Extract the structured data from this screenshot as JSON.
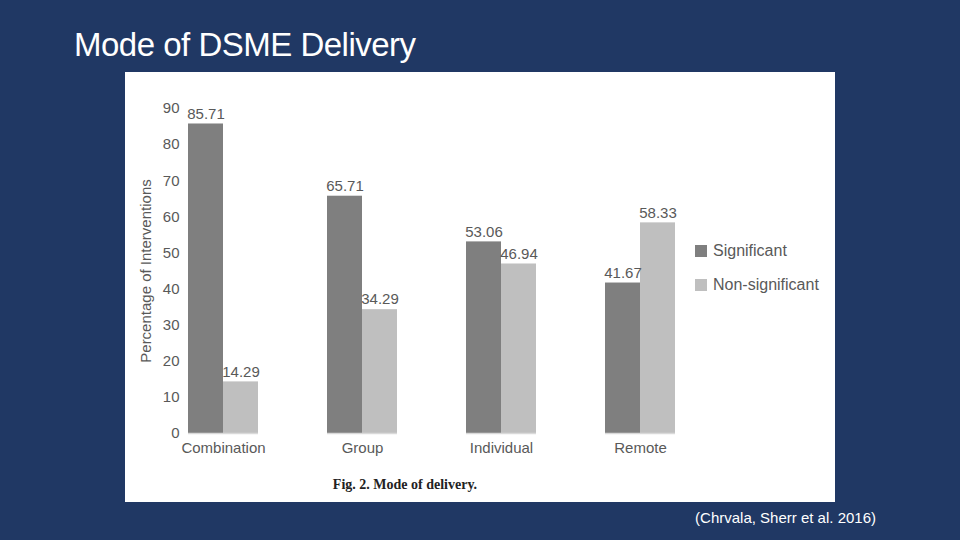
{
  "chart_data": {
    "type": "bar",
    "title": "Mode of DSME Delivery",
    "ylabel": "Percentage of Interventions",
    "caption": "Fig. 2. Mode of delivery.",
    "source": "(Chrvala, Sherr et al. 2016)",
    "categories": [
      "Combination",
      "Group",
      "Individual",
      "Remote"
    ],
    "series": [
      {
        "name": "Significant",
        "color": "#7f7f7f",
        "values": [
          85.71,
          65.71,
          53.06,
          41.67
        ]
      },
      {
        "name": "Non-significant",
        "color": "#bfbfbf",
        "values": [
          14.29,
          34.29,
          46.94,
          58.33
        ]
      }
    ],
    "ylim": [
      0,
      90
    ],
    "yticks": [
      0,
      10,
      20,
      30,
      40,
      50,
      60,
      70,
      80,
      90
    ],
    "grid": false,
    "legend": "right",
    "data_labels": true
  }
}
